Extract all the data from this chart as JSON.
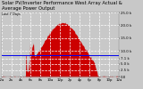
{
  "title": "Solar PV/Inverter Performance West Array Actual & Average Power Output",
  "subtitle": "Last 7 Days",
  "ylim": [
    0,
    25000
  ],
  "xlim": [
    0,
    288
  ],
  "avg_power": 8500,
  "bar_color": "#cc0000",
  "avg_line_color": "#0000ee",
  "bg_color": "#c8c8c8",
  "grid_color": "#ffffff",
  "title_fontsize": 3.8,
  "tick_fontsize": 2.8,
  "ytick_values": [
    0,
    2500,
    5000,
    7100,
    10000,
    15000,
    20000,
    25000
  ],
  "ytick_labels": [
    "0.0",
    "2.5 k",
    "5.0 k",
    "7.1 k",
    "10.0 k",
    "15.0 k",
    "20.0 k",
    "25.0 k"
  ],
  "xtick_positions": [
    0,
    24,
    48,
    72,
    96,
    120,
    144,
    168,
    192,
    216,
    240,
    264,
    288
  ],
  "xtick_labels": [
    "12a",
    "2a",
    "4a",
    "6a",
    "8a",
    "10a",
    "12p",
    "2p",
    "4p",
    "6p",
    "8p",
    "10p",
    "12a"
  ]
}
